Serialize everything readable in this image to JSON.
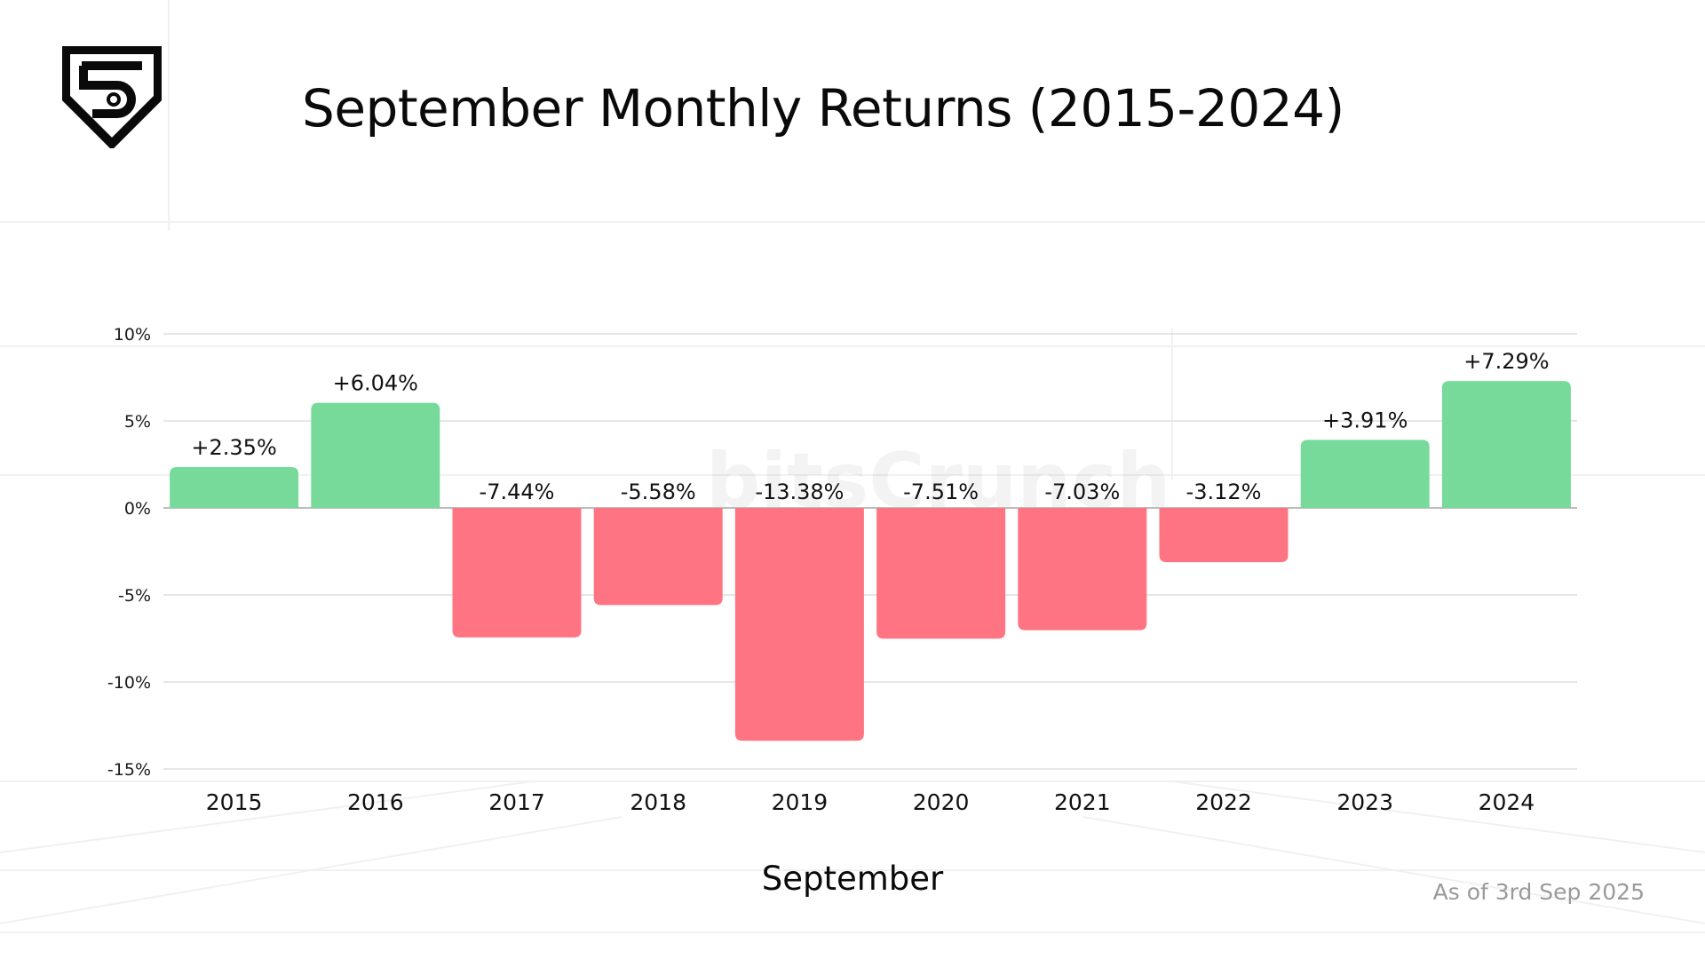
{
  "title": "September Monthly Returns (2015-2024)",
  "watermark": "bitsCrunch",
  "footnote": "As of 3rd Sep 2025",
  "logo_icon": "bitscrunch-shield-logo-icon",
  "colors": {
    "positive": "#77DA9B",
    "negative": "#FF7482",
    "gridline": "#DDDDDD",
    "zero_line": "#BDBDBD",
    "text": "#111111"
  },
  "chart_data": {
    "type": "bar",
    "xlabel": "September",
    "ylabel": "",
    "ylim": [
      -15,
      10
    ],
    "yticks": [
      10,
      5,
      0,
      -5,
      -10,
      -15
    ],
    "ytick_labels": [
      "10%",
      "5%",
      "0%",
      "-5%",
      "-10%",
      "-15%"
    ],
    "grid": true,
    "categories": [
      "2015",
      "2016",
      "2017",
      "2018",
      "2019",
      "2020",
      "2021",
      "2022",
      "2023",
      "2024"
    ],
    "values": [
      2.35,
      6.04,
      -7.44,
      -5.58,
      -13.38,
      -7.51,
      -7.03,
      -3.12,
      3.91,
      7.29
    ],
    "data_labels": [
      "+2.35%",
      "+6.04%",
      "-7.44%",
      "-5.58%",
      "-13.38%",
      "-7.51%",
      "-7.03%",
      "-3.12%",
      "+3.91%",
      "+7.29%"
    ]
  }
}
